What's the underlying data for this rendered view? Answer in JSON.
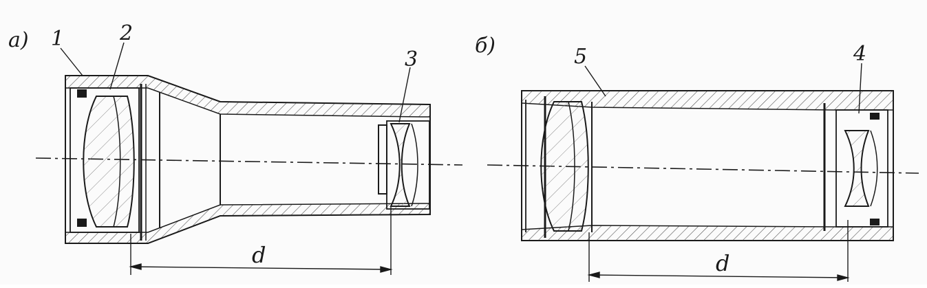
{
  "figure": {
    "panels": [
      {
        "id": "a",
        "panel_label": "а)",
        "callouts": [
          "1",
          "2",
          "3"
        ],
        "dimension_label": "d"
      },
      {
        "id": "b",
        "panel_label": "б)",
        "callouts": [
          "5",
          "4"
        ],
        "dimension_label": "d"
      }
    ],
    "colors": {
      "ink": "#1a1a1a",
      "paper": "#fbfbfb",
      "hatch": "#555555"
    }
  }
}
